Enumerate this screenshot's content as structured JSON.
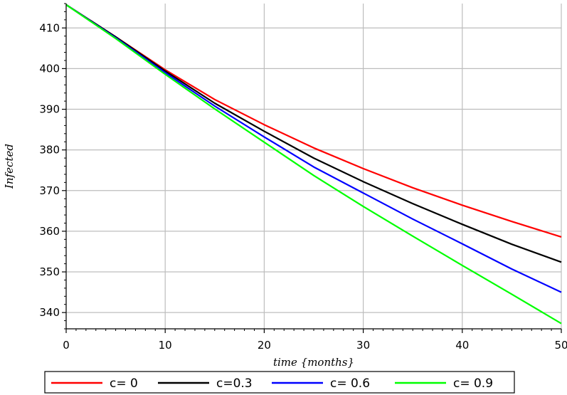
{
  "chart_data": {
    "type": "line",
    "xlabel": "time {months}",
    "ylabel": "Infected",
    "xlim": [
      0,
      50
    ],
    "ylim": [
      336,
      416
    ],
    "xticks": [
      0,
      10,
      20,
      30,
      40,
      50
    ],
    "yticks": [
      340,
      350,
      360,
      370,
      380,
      390,
      400,
      410
    ],
    "grid": true,
    "legend_position": "bottom",
    "x": [
      0,
      5,
      10,
      15,
      20,
      25,
      30,
      35,
      40,
      45,
      50
    ],
    "series": [
      {
        "name": "c= 0",
        "color": "#ff0000",
        "values": [
          415.7,
          407.8,
          399.7,
          392.4,
          386.2,
          380.5,
          375.4,
          370.7,
          366.4,
          362.4,
          358.6
        ]
      },
      {
        "name": "c=0.3",
        "color": "#000000",
        "values": [
          415.7,
          407.8,
          399.4,
          391.5,
          384.6,
          378.0,
          372.2,
          366.8,
          361.7,
          356.8,
          352.4
        ]
      },
      {
        "name": "c= 0.6",
        "color": "#0000ff",
        "values": [
          415.7,
          407.6,
          399.0,
          390.8,
          383.2,
          375.8,
          369.4,
          363.0,
          356.9,
          350.7,
          345.0
        ]
      },
      {
        "name": "c= 0.9",
        "color": "#00ff00",
        "values": [
          415.7,
          407.4,
          398.6,
          390.1,
          381.9,
          373.7,
          366.1,
          358.8,
          351.6,
          344.5,
          337.3
        ]
      }
    ]
  }
}
